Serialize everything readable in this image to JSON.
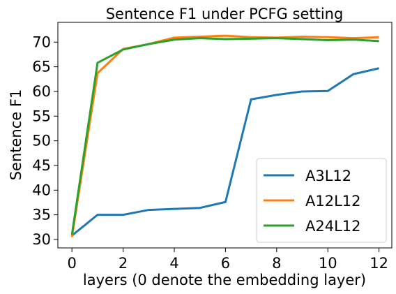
{
  "chart_data": {
    "type": "line",
    "title": "Sentence F1 under PCFG setting",
    "xlabel": "layers (0 denote the embedding layer)",
    "ylabel": "Sentence F1",
    "x": [
      0,
      1,
      2,
      3,
      4,
      5,
      6,
      7,
      8,
      9,
      10,
      11,
      12
    ],
    "series": [
      {
        "name": "A3L12",
        "color": "#1f77b4",
        "values": [
          30.8,
          35,
          35,
          36,
          36.2,
          36.4,
          37.6,
          58.4,
          59.3,
          60,
          60.1,
          63.5,
          64.7
        ]
      },
      {
        "name": "A12L12",
        "color": "#ff7f0e",
        "values": [
          30.5,
          63.7,
          68.6,
          69.6,
          70.9,
          71.1,
          71.3,
          71,
          70.9,
          71.1,
          71,
          70.8,
          71
        ]
      },
      {
        "name": "A24L12",
        "color": "#2ca02c",
        "values": [
          31,
          65.8,
          68.5,
          69.6,
          70.5,
          70.8,
          70.6,
          70.7,
          70.8,
          70.6,
          70.4,
          70.5,
          70.2
        ]
      }
    ],
    "xlim": [
      -0.55,
      12.5
    ],
    "xticks": [
      0,
      2,
      4,
      6,
      8,
      10,
      12
    ],
    "ylim": [
      28.3,
      74
    ],
    "yticks": [
      30,
      35,
      40,
      45,
      50,
      55,
      60,
      65,
      70
    ],
    "grid": false,
    "legend": "lower right"
  }
}
